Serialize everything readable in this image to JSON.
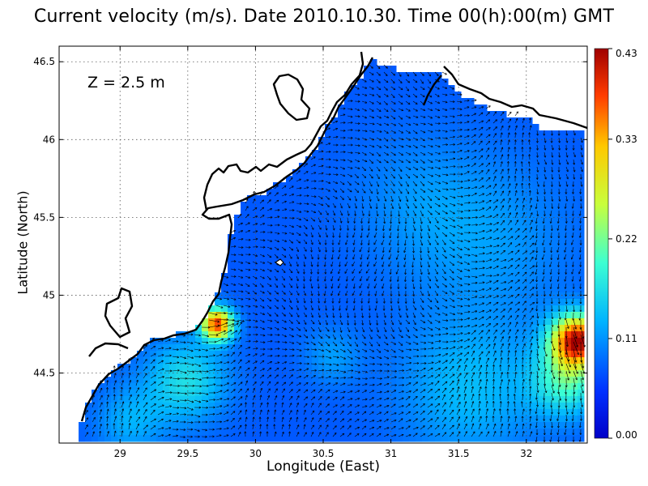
{
  "chart_data": {
    "type": "heatmap",
    "title": "Current velocity (m/s). Date 2010.10.30. Time 00(h):00(m) GMT",
    "annotation": "Z = 2.5 m",
    "xlabel": "Longitude (East)",
    "ylabel": "Latitude (North)",
    "xlim": [
      28.55,
      32.45
    ],
    "ylim": [
      44.05,
      46.6
    ],
    "xticks": [
      29,
      29.5,
      30,
      30.5,
      31,
      31.5,
      32
    ],
    "xtick_labels": [
      "29",
      "29.5",
      "30",
      "30.5",
      "31",
      "31.5",
      "32"
    ],
    "yticks": [
      44.5,
      45,
      45.5,
      46,
      46.5
    ],
    "ytick_labels": [
      "44.5",
      "45",
      "45.5",
      "46",
      "46.5"
    ],
    "grid": true,
    "colorbar": {
      "min": 0,
      "max": 0.43,
      "ticks": [
        0.0,
        0.11,
        0.22,
        0.33,
        0.43
      ],
      "tick_labels": [
        "0.00",
        "0.11",
        "0.22",
        "0.33",
        "0.43"
      ],
      "colormap": "jet"
    },
    "land_color": "#ffffff",
    "coastline_color": "#000000"
  }
}
